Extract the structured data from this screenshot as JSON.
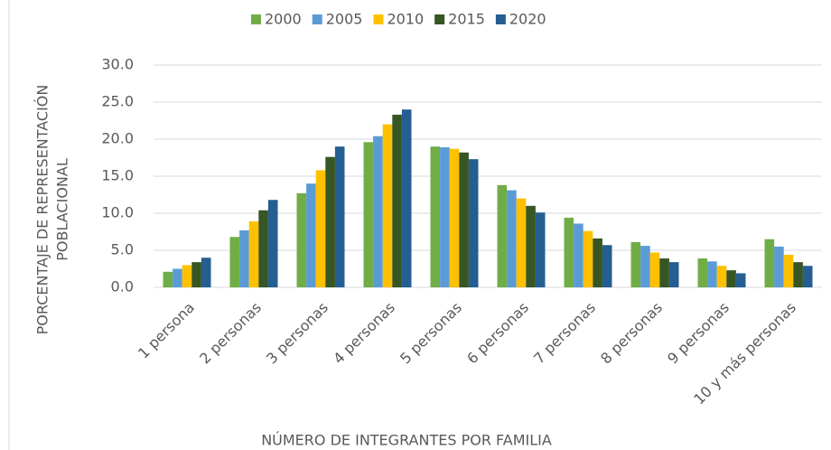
{
  "chart_data": {
    "type": "bar",
    "xlabel": "NÚMERO DE INTEGRANTES POR FAMILIA",
    "ylabel": [
      "PORCENTAJE  DE REPRESENTACIÓN",
      "POBLACIONAL"
    ],
    "categories": [
      "1 persona",
      "2 personas",
      "3 personas",
      "4 personas",
      "5 personas",
      "6 personas",
      "7 personas",
      "8 personas",
      "9 personas",
      "10 y más personas"
    ],
    "series": [
      {
        "name": "2000",
        "color": "#70ad47",
        "values": [
          2.1,
          6.8,
          12.7,
          19.6,
          19.0,
          13.8,
          9.4,
          6.1,
          3.9,
          6.5
        ]
      },
      {
        "name": "2005",
        "color": "#5b9bd5",
        "values": [
          2.5,
          7.7,
          14.0,
          20.4,
          18.9,
          13.1,
          8.6,
          5.6,
          3.5,
          5.5
        ]
      },
      {
        "name": "2010",
        "color": "#ffc000",
        "values": [
          3.0,
          8.9,
          15.8,
          22.0,
          18.7,
          12.0,
          7.6,
          4.7,
          2.9,
          4.4
        ]
      },
      {
        "name": "2015",
        "color": "#375623",
        "values": [
          3.4,
          10.4,
          17.6,
          23.3,
          18.2,
          11.0,
          6.6,
          3.9,
          2.3,
          3.4
        ]
      },
      {
        "name": "2020",
        "color": "#255e91",
        "values": [
          4.0,
          11.8,
          19.0,
          24.0,
          17.3,
          10.1,
          5.7,
          3.4,
          1.9,
          2.9
        ]
      }
    ],
    "ylim": [
      0,
      30
    ],
    "yticks": [
      {
        "value": 0,
        "label": "0.0"
      },
      {
        "value": 5,
        "label": "5.0"
      },
      {
        "value": 10,
        "label": "10.0"
      },
      {
        "value": 15,
        "label": "15.0"
      },
      {
        "value": 20,
        "label": "20.0"
      },
      {
        "value": 25,
        "label": "25.0"
      },
      {
        "value": 30,
        "label": "30.0"
      }
    ],
    "grid": true,
    "legend": "top"
  }
}
